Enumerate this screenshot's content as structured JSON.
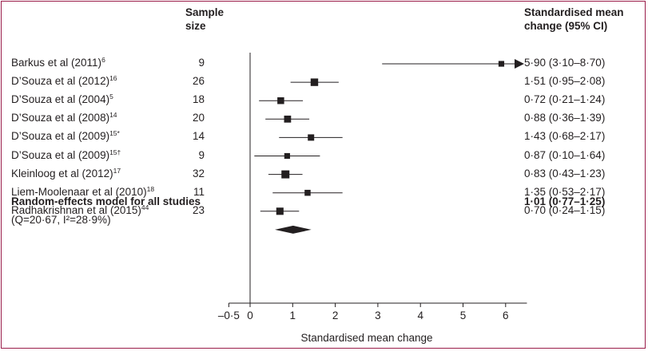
{
  "headers": {
    "sample_size": "Sample size",
    "sample_size_line1": "Sample",
    "sample_size_line2": "size",
    "smc_line1": "Standardised mean",
    "smc_line2": "change (95% CI)"
  },
  "studies": [
    {
      "name": "Barkus et al (2011)",
      "ref": "6",
      "n": "9",
      "ci_text": "5·90 (3·10–8·70)"
    },
    {
      "name": "D’Souza et al (2012)",
      "ref": "16",
      "n": "26",
      "ci_text": "1·51 (0·95–2·08)"
    },
    {
      "name": "D’Souza et al (2004)",
      "ref": "5",
      "n": "18",
      "ci_text": "0·72 (0·21–1·24)"
    },
    {
      "name": "D’Souza et al (2008)",
      "ref": "14",
      "n": "20",
      "ci_text": "0·88 (0·36–1·39)"
    },
    {
      "name": "D’Souza et al (2009)",
      "ref": "15*",
      "n": "14",
      "ci_text": "1·43 (0·68–2·17)"
    },
    {
      "name": "D’Souza et al (2009)",
      "ref": "15†",
      "n": "9",
      "ci_text": "0·87 (0·10–1·64)"
    },
    {
      "name": "Kleinloog et al (2012)",
      "ref": "17",
      "n": "32",
      "ci_text": "0·83 (0·43–1·23)"
    },
    {
      "name": "Liem-Moolenaar et al (2010)",
      "ref": "18",
      "n": "11",
      "ci_text": "1·35 (0·53–2·17)"
    },
    {
      "name": "Radhakrishnan et al (2015)",
      "ref": "44",
      "n": "23",
      "ci_text": "0·70 (0·24–1·15)"
    }
  ],
  "summary": {
    "label": "Random-effects model for all studies",
    "ci_text": "1·01 (0·77–1·25)",
    "heterogeneity": "(Q=20·67, I²=28·9%)"
  },
  "chart_data": {
    "type": "forest",
    "xlabel": "Standardised mean change",
    "xlim": [
      -0.5,
      6.5
    ],
    "x_ticks": [
      -0.5,
      0,
      1,
      2,
      3,
      4,
      5,
      6
    ],
    "x_tick_labels": [
      "–0·5",
      "0",
      "1",
      "2",
      "3",
      "4",
      "5",
      "6"
    ],
    "reference_line": 0,
    "studies": [
      {
        "label": "Barkus et al (2011)",
        "n": 9,
        "estimate": 5.9,
        "lower": 3.1,
        "upper": 8.7,
        "truncated": true
      },
      {
        "label": "D’Souza et al (2012)",
        "n": 26,
        "estimate": 1.51,
        "lower": 0.95,
        "upper": 2.08
      },
      {
        "label": "D’Souza et al (2004)",
        "n": 18,
        "estimate": 0.72,
        "lower": 0.21,
        "upper": 1.24
      },
      {
        "label": "D’Souza et al (2008)",
        "n": 20,
        "estimate": 0.88,
        "lower": 0.36,
        "upper": 1.39
      },
      {
        "label": "D’Souza et al (2009)*",
        "n": 14,
        "estimate": 1.43,
        "lower": 0.68,
        "upper": 2.17
      },
      {
        "label": "D’Souza et al (2009)†",
        "n": 9,
        "estimate": 0.87,
        "lower": 0.1,
        "upper": 1.64
      },
      {
        "label": "Kleinloog et al (2012)",
        "n": 32,
        "estimate": 0.83,
        "lower": 0.43,
        "upper": 1.23
      },
      {
        "label": "Liem-Moolenaar et al (2010)",
        "n": 11,
        "estimate": 1.35,
        "lower": 0.53,
        "upper": 2.17
      },
      {
        "label": "Radhakrishnan et al (2015)",
        "n": 23,
        "estimate": 0.7,
        "lower": 0.24,
        "upper": 1.15
      }
    ],
    "pooled": {
      "label": "Random-effects model for all studies",
      "estimate": 1.01,
      "lower": 0.77,
      "upper": 1.25
    },
    "colors": {
      "frame": "#9a1d4a",
      "marks": "#231f20"
    }
  }
}
